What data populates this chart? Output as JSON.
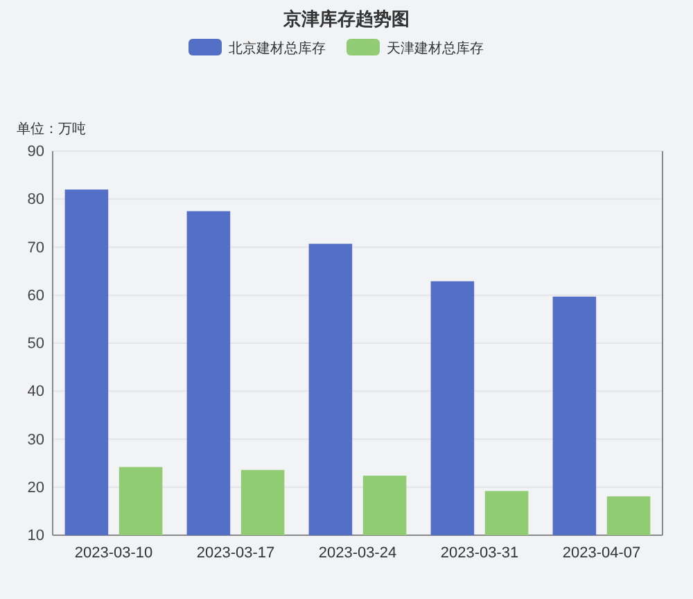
{
  "chart_data": {
    "type": "bar",
    "title": "京津库存趋势图",
    "ylabel": "单位：万吨",
    "categories": [
      "2023-03-10",
      "2023-03-17",
      "2023-03-24",
      "2023-03-31",
      "2023-04-07"
    ],
    "series": [
      {
        "name": "北京建材总库存",
        "color": "#5470c6",
        "values": [
          82,
          77.5,
          70.7,
          62.9,
          59.7
        ]
      },
      {
        "name": "天津建材总库存",
        "color": "#91cc75",
        "values": [
          24.2,
          23.6,
          22.4,
          19.2,
          18.1
        ]
      }
    ],
    "ylim": [
      10,
      90
    ],
    "yticks": [
      10,
      20,
      30,
      40,
      50,
      60,
      70,
      80,
      90
    ],
    "grid": "y",
    "legend": "top"
  }
}
